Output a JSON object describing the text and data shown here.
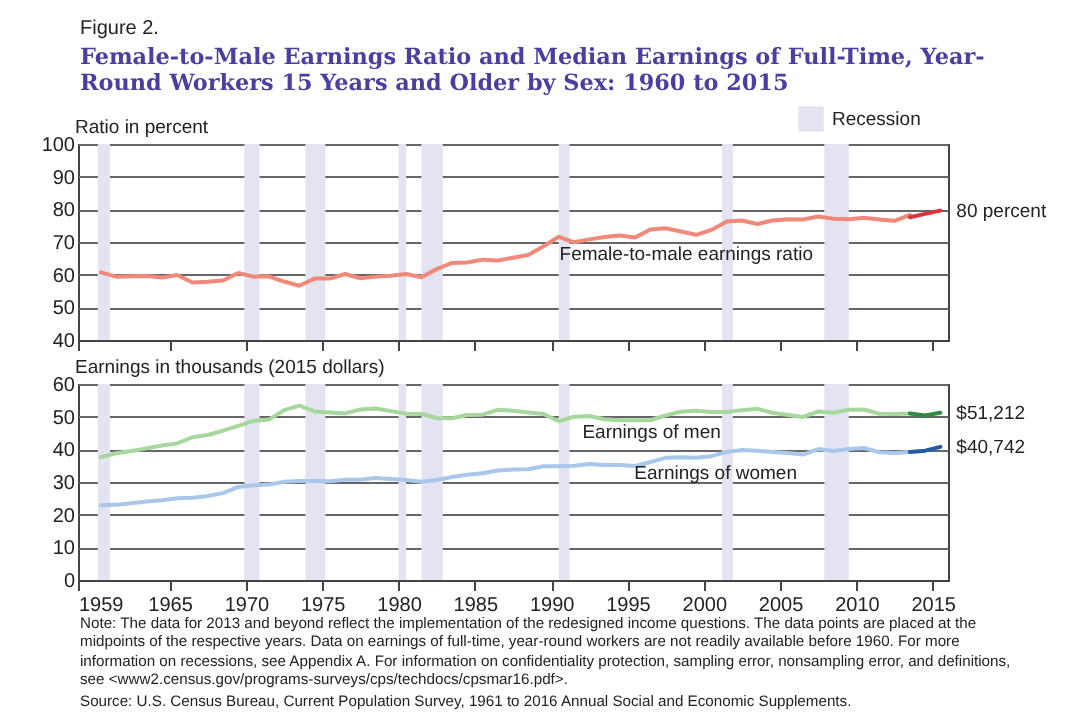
{
  "chart_data": [
    {
      "type": "line",
      "title": "Female-to-Male Earnings Ratio and Median Earnings of Full-Time, Year-Round Workers 15 Years and Older by Sex: 1960 to 2015",
      "subtitle": "Figure 2.",
      "ylabel": "Ratio in percent",
      "xlim": [
        1959,
        2016
      ],
      "xticks": [
        1959,
        1965,
        1970,
        1975,
        1980,
        1985,
        1990,
        1995,
        2000,
        2005,
        2010,
        2015
      ],
      "ylim": [
        40,
        100
      ],
      "yticks": [
        40,
        50,
        60,
        70,
        80,
        90,
        100
      ],
      "grid": "y",
      "tick_labels": "y",
      "bands": [
        {
          "axis": "x",
          "from": 1960.3,
          "to": 1961.1,
          "label": "Recession",
          "color": "#e3e3f1"
        },
        {
          "axis": "x",
          "from": 1969.9,
          "to": 1970.9,
          "color": "#e3e3f1"
        },
        {
          "axis": "x",
          "from": 1973.9,
          "to": 1975.2,
          "color": "#e3e3f1"
        },
        {
          "axis": "x",
          "from": 1980.0,
          "to": 1980.5,
          "color": "#e3e3f1"
        },
        {
          "axis": "x",
          "from": 1981.5,
          "to": 1982.9,
          "color": "#e3e3f1"
        },
        {
          "axis": "x",
          "from": 1990.5,
          "to": 1991.2,
          "color": "#e3e3f1"
        },
        {
          "axis": "x",
          "from": 2001.2,
          "to": 2001.9,
          "color": "#e3e3f1"
        },
        {
          "axis": "x",
          "from": 2007.9,
          "to": 2009.5,
          "color": "#e3e3f1"
        }
      ],
      "annotations": [
        {
          "text": "Female-to-male earnings ratio",
          "x": 1989.5,
          "y": 66.4
        },
        {
          "text": "80 percent",
          "x": 2015.5,
          "y": 79.6
        }
      ],
      "series": [
        {
          "color": "#f0897a",
          "x": [
            1960.5,
            1961.5,
            1962.5,
            1963.5,
            1964.5,
            1965.5,
            1966.5,
            1967.5,
            1968.5,
            1969.5,
            1970.5,
            1971.5,
            1972.5,
            1973.5,
            1974.5,
            1975.5,
            1976.5,
            1977.5,
            1978.5,
            1979.5,
            1980.5,
            1981.5,
            1982.5,
            1983.5,
            1984.5,
            1985.5,
            1986.5,
            1987.5,
            1988.5,
            1989.5,
            1990.5,
            1991.5,
            1992.5,
            1993.5,
            1994.5,
            1995.5,
            1996.5,
            1997.5,
            1998.5,
            1999.5,
            2000.5,
            2001.5,
            2002.5,
            2003.5,
            2004.5,
            2005.5,
            2006.5,
            2007.5,
            2008.5,
            2009.5,
            2010.5,
            2011.5,
            2012.5,
            2013.5
          ],
          "values": [
            60.7,
            59.4,
            59.5,
            59.6,
            59.1,
            59.9,
            57.6,
            57.8,
            58.2,
            60.5,
            59.4,
            59.5,
            57.9,
            56.6,
            58.8,
            58.8,
            60.2,
            58.9,
            59.4,
            59.7,
            60.2,
            59.2,
            61.7,
            63.6,
            63.7,
            64.6,
            64.3,
            65.2,
            66.0,
            68.7,
            71.6,
            69.9,
            70.8,
            71.5,
            72.0,
            71.4,
            73.8,
            74.2,
            73.2,
            72.2,
            73.7,
            76.3,
            76.6,
            75.5,
            76.6,
            77.0,
            76.9,
            77.8,
            77.1,
            77.0,
            77.4,
            76.9,
            76.5,
            78.3
          ]
        },
        {
          "color": "#d9343a",
          "x": [
            2013.5,
            2014.5,
            2015.5
          ],
          "values": [
            77.6,
            78.6,
            79.6
          ]
        }
      ]
    },
    {
      "type": "line",
      "ylabel": "Earnings in thousands (2015 dollars)",
      "xlim": [
        1959,
        2016
      ],
      "xticks": [
        1959,
        1965,
        1970,
        1975,
        1980,
        1985,
        1990,
        1995,
        2000,
        2005,
        2010,
        2015
      ],
      "ylim": [
        0,
        60
      ],
      "yticks": [
        0,
        10,
        20,
        30,
        40,
        50,
        60
      ],
      "grid": "y",
      "bands": [
        {
          "axis": "x",
          "from": 1960.3,
          "to": 1961.1,
          "color": "#e3e3f1"
        },
        {
          "axis": "x",
          "from": 1969.9,
          "to": 1970.9,
          "color": "#e3e3f1"
        },
        {
          "axis": "x",
          "from": 1973.9,
          "to": 1975.2,
          "color": "#e3e3f1"
        },
        {
          "axis": "x",
          "from": 1980.0,
          "to": 1980.5,
          "color": "#e3e3f1"
        },
        {
          "axis": "x",
          "from": 1981.5,
          "to": 1982.9,
          "color": "#e3e3f1"
        },
        {
          "axis": "x",
          "from": 1990.5,
          "to": 1991.2,
          "color": "#e3e3f1"
        },
        {
          "axis": "x",
          "from": 2001.2,
          "to": 2001.9,
          "color": "#e3e3f1"
        },
        {
          "axis": "x",
          "from": 2007.9,
          "to": 2009.5,
          "color": "#e3e3f1"
        }
      ],
      "annotations": [
        {
          "text": "Earnings of men",
          "x": 1991,
          "y": 45.3
        },
        {
          "text": "Earnings of women",
          "x": 1994.4,
          "y": 32.7
        },
        {
          "text": "$51,212",
          "x": 2015.5,
          "y": 51.212
        },
        {
          "text": "$40,742",
          "x": 2015.5,
          "y": 40.742
        },
        "Note: The data for 2013 and beyond reflect the implementation of the redesigned income questions. The data points are placed at the midpoints of the respective years. Data on earnings of full-time, year-round workers are not readily available before 1960. For more information on recessions, see Appendix A. For information on confidentiality protection, sampling error, nonsampling error, and definitions, see <www2.census.gov/programs-surveys/cps/techdocs/cpsmar16.pdf>.",
        "Source: U.S. Census Bureau, Current Population Survey, 1961 to 2016 Annual Social and Economic Supplements."
      ],
      "series": [
        {
          "color": "#a6d89e",
          "x": [
            1960.5,
            1961.5,
            1962.5,
            1963.5,
            1964.5,
            1965.5,
            1966.5,
            1967.5,
            1968.5,
            1969.5,
            1970.5,
            1971.5,
            1972.5,
            1973.5,
            1974.5,
            1975.5,
            1976.5,
            1977.5,
            1978.5,
            1979.5,
            1980.5,
            1981.5,
            1982.5,
            1983.5,
            1984.5,
            1985.5,
            1986.5,
            1987.5,
            1988.5,
            1989.5,
            1990.5,
            1991.5,
            1992.5,
            1993.5,
            1994.5,
            1995.5,
            1996.5,
            1997.5,
            1998.5,
            1999.5,
            2000.5,
            2001.5,
            2002.5,
            2003.5,
            2004.5,
            2005.5,
            2006.5,
            2007.5,
            2008.5,
            2009.5,
            2010.5,
            2011.5,
            2012.5,
            2013.5
          ],
          "values": [
            37.6,
            38.8,
            39.5,
            40.3,
            41.2,
            41.8,
            43.7,
            44.4,
            45.7,
            47.2,
            48.7,
            49.1,
            52.0,
            53.4,
            51.6,
            51.3,
            51.0,
            52.2,
            52.5,
            51.7,
            50.9,
            50.8,
            49.6,
            49.5,
            50.5,
            50.6,
            52.1,
            51.8,
            51.3,
            50.8,
            48.6,
            50.0,
            50.2,
            49.2,
            48.9,
            48.9,
            48.9,
            50.4,
            51.5,
            51.8,
            51.4,
            51.4,
            52.0,
            52.4,
            51.2,
            50.5,
            49.9,
            51.6,
            51.2,
            52.1,
            52.2,
            50.9,
            50.8,
            51.0
          ]
        },
        {
          "color": "#2e8b3e",
          "x": [
            2013.5,
            2014.5,
            2015.5
          ],
          "values": [
            51.0,
            50.4,
            51.212
          ]
        },
        {
          "color": "#a9c7ea",
          "x": [
            1960.5,
            1961.5,
            1962.5,
            1963.5,
            1964.5,
            1965.5,
            1966.5,
            1967.5,
            1968.5,
            1969.5,
            1970.5,
            1971.5,
            1972.5,
            1973.5,
            1974.5,
            1975.5,
            1976.5,
            1977.5,
            1978.5,
            1979.5,
            1980.5,
            1981.5,
            1982.5,
            1983.5,
            1984.5,
            1985.5,
            1986.5,
            1987.5,
            1988.5,
            1989.5,
            1990.5,
            1991.5,
            1992.5,
            1993.5,
            1994.5,
            1995.5,
            1996.5,
            1997.5,
            1998.5,
            1999.5,
            2000.5,
            2001.5,
            2002.5,
            2003.5,
            2004.5,
            2005.5,
            2006.5,
            2007.5,
            2008.5,
            2009.5,
            2010.5,
            2011.5,
            2012.5,
            2013.5
          ],
          "values": [
            22.9,
            23.0,
            23.5,
            24.0,
            24.4,
            25.0,
            25.2,
            25.7,
            26.6,
            28.5,
            29.0,
            29.2,
            30.1,
            30.3,
            30.3,
            30.2,
            30.7,
            30.7,
            31.2,
            30.9,
            30.6,
            30.1,
            30.6,
            31.5,
            32.2,
            32.7,
            33.5,
            33.8,
            33.9,
            34.8,
            34.8,
            35.0,
            35.5,
            35.2,
            35.2,
            34.9,
            36.1,
            37.4,
            37.6,
            37.4,
            37.9,
            39.2,
            39.8,
            39.6,
            39.2,
            38.9,
            38.4,
            40.1,
            39.5,
            40.1,
            40.4,
            39.1,
            38.9,
            39.2
          ]
        },
        {
          "color": "#1f5ca8",
          "x": [
            2013.5,
            2014.5,
            2015.5
          ],
          "values": [
            39.2,
            39.6,
            40.742
          ]
        }
      ]
    }
  ]
}
